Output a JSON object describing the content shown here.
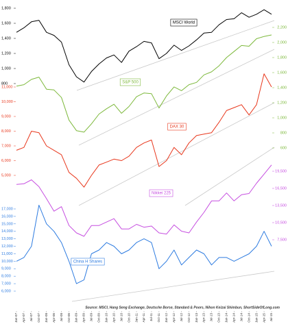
{
  "chart_data": {
    "type": "line",
    "source": "Source: MSCI, Hang Seng Exchange, Deutsche Borse, Standard & Poors, Nihon Keizai Shimbun, ShortSideOfLong.com",
    "categories": [
      "Jan-07",
      "Apr-07",
      "Jul-07",
      "Oct-07",
      "Jan-08",
      "Apr-08",
      "Jul-08",
      "Oct-08",
      "Jan-09",
      "Apr-09",
      "Jul-09",
      "Oct-09",
      "Jan-10",
      "Apr-10",
      "Jul-10",
      "Oct-10",
      "Jan-11",
      "Apr-11",
      "Jul-11",
      "Oct-11",
      "Jan-12",
      "Apr-12",
      "Jul-12",
      "Oct-12",
      "Jan-13",
      "Apr-13",
      "Jul-13",
      "Oct-13",
      "Jan-14",
      "Apr-14",
      "Jul-14",
      "Oct-14",
      "Jan-15",
      "Apr-15",
      "Jul-15"
    ],
    "series": [
      {
        "name": "MSCI World",
        "color": "#000000",
        "axis": "left",
        "ylim": [
          800,
          1800
        ],
        "yticks": [
          {
            "value": 800,
            "label": "800"
          },
          {
            "value": 1000,
            "label": "1,000"
          },
          {
            "value": 1200,
            "label": "1,200"
          },
          {
            "value": 1400,
            "label": "1,400"
          },
          {
            "value": 1600,
            "label": "1,600"
          },
          {
            "value": 1800,
            "label": "1,800"
          }
        ],
        "values": [
          1480,
          1540,
          1620,
          1640,
          1480,
          1440,
          1350,
          1050,
          890,
          820,
          960,
          1060,
          1140,
          1180,
          1080,
          1230,
          1290,
          1360,
          1340,
          1130,
          1200,
          1310,
          1240,
          1300,
          1380,
          1470,
          1480,
          1580,
          1650,
          1660,
          1740,
          1680,
          1720,
          1780,
          1720
        ]
      },
      {
        "name": "S&P 500",
        "color": "#7cb83a",
        "axis": "right",
        "ylim": [
          600,
          2200
        ],
        "yticks": [
          {
            "value": 600,
            "label": "600"
          },
          {
            "value": 800,
            "label": "800"
          },
          {
            "value": 1000,
            "label": "1,000"
          },
          {
            "value": 1200,
            "label": "1,200"
          },
          {
            "value": 1400,
            "label": "1,400"
          },
          {
            "value": 1600,
            "label": "1,600"
          },
          {
            "value": 1800,
            "label": "1,800"
          },
          {
            "value": 2000,
            "label": "2,000"
          },
          {
            "value": 2200,
            "label": "2,200"
          }
        ],
        "values": [
          1420,
          1440,
          1510,
          1540,
          1380,
          1370,
          1270,
          970,
          830,
          810,
          920,
          1050,
          1120,
          1180,
          1060,
          1150,
          1280,
          1330,
          1320,
          1130,
          1290,
          1410,
          1360,
          1440,
          1470,
          1570,
          1610,
          1690,
          1800,
          1880,
          1960,
          1950,
          2050,
          2080,
          2100
        ]
      },
      {
        "name": "DAX 30",
        "color": "#e8361b",
        "axis": "left",
        "ylim": [
          5000,
          11000
        ],
        "yticks": [
          {
            "value": 5000,
            "label": "5,000"
          },
          {
            "value": 6000,
            "label": "6,000"
          },
          {
            "value": 7000,
            "label": "7,000"
          },
          {
            "value": 8000,
            "label": "8,000"
          },
          {
            "value": 9000,
            "label": "9,000"
          },
          {
            "value": 10000,
            "label": "10,000"
          },
          {
            "value": 11000,
            "label": "11,000"
          }
        ],
        "values": [
          6700,
          6900,
          8000,
          7900,
          7000,
          6700,
          6400,
          5200,
          4800,
          4200,
          5000,
          5700,
          5900,
          6100,
          6000,
          6300,
          6900,
          7200,
          7400,
          5600,
          6000,
          6900,
          6400,
          7200,
          7700,
          7800,
          7900,
          8600,
          9400,
          9600,
          9800,
          9100,
          9800,
          11900,
          11000
        ]
      },
      {
        "name": "Nikkei 225",
        "color": "#c64ee0",
        "axis": "right",
        "ylim": [
          7500,
          19500
        ],
        "yticks": [
          {
            "value": 7500,
            "label": "7,500"
          },
          {
            "value": 10500,
            "label": "10,500"
          },
          {
            "value": 13500,
            "label": "13,500"
          },
          {
            "value": 16500,
            "label": "16,500"
          },
          {
            "value": 19500,
            "label": "19,500"
          }
        ],
        "values": [
          17200,
          17300,
          18000,
          16800,
          14700,
          12500,
          13300,
          10000,
          8700,
          8100,
          10000,
          10000,
          10600,
          11200,
          9400,
          9400,
          10200,
          9700,
          9900,
          8700,
          8500,
          10100,
          9000,
          8700,
          10600,
          12300,
          14300,
          14300,
          15700,
          14300,
          15400,
          15600,
          17400,
          19000,
          20600
        ]
      },
      {
        "name": "China H Shares",
        "color": "#2d7be0",
        "axis": "left",
        "ylim": [
          6000,
          17000
        ],
        "yticks": [
          {
            "value": 6000,
            "label": "6,000"
          },
          {
            "value": 7000,
            "label": "7,000"
          },
          {
            "value": 8000,
            "label": "8,000"
          },
          {
            "value": 9000,
            "label": "9,000"
          },
          {
            "value": 10000,
            "label": "10,000"
          },
          {
            "value": 11000,
            "label": "11,000"
          },
          {
            "value": 12000,
            "label": "12,000"
          },
          {
            "value": 13000,
            "label": "13,000"
          },
          {
            "value": 14000,
            "label": "14,000"
          },
          {
            "value": 15000,
            "label": "15,000"
          },
          {
            "value": 16000,
            "label": "16,000"
          },
          {
            "value": 17000,
            "label": "17,000"
          }
        ],
        "values": [
          10000,
          10500,
          12000,
          17500,
          15000,
          14000,
          12500,
          10000,
          7000,
          7500,
          11000,
          11500,
          12500,
          12000,
          11000,
          11500,
          12500,
          13000,
          12500,
          9000,
          10000,
          11500,
          9500,
          10500,
          11500,
          11000,
          9500,
          10500,
          10500,
          10000,
          10500,
          11000,
          12000,
          14000,
          12000
        ]
      }
    ]
  }
}
